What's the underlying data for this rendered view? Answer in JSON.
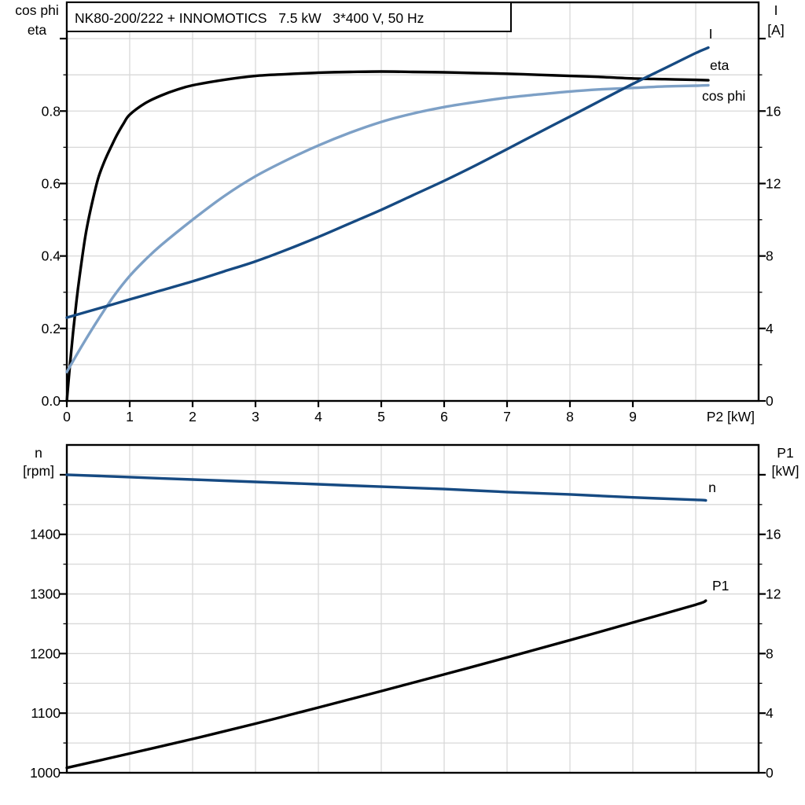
{
  "title": "NK80-200/222 + INNOMOTICS   7.5 kW   3*400 V, 50 Hz",
  "colors": {
    "navy": "#164a82",
    "steel_blue": "#7da0c6",
    "black": "#000000",
    "grid": "#d8d8d8",
    "frame": "#000000",
    "background": "#ffffff"
  },
  "chart_data": [
    {
      "type": "line",
      "title": "NK80-200/222 + INNOMOTICS   7.5 kW   3*400 V, 50 Hz",
      "x_axis": {
        "label": "P2 [kW]",
        "min": 0,
        "max": 11,
        "grid_step": 1,
        "tick_values": [
          0,
          1,
          2,
          3,
          4,
          5,
          6,
          7,
          8,
          9
        ],
        "tick_labels": [
          "0",
          "1",
          "2",
          "3",
          "4",
          "5",
          "6",
          "7",
          "8",
          "9"
        ]
      },
      "left_axis": {
        "label_lines": [
          "cos phi",
          "eta"
        ],
        "min": 0,
        "max": 1.1,
        "grid_step": 0.1,
        "tick_values": [
          0,
          0.2,
          0.4,
          0.6,
          0.8
        ],
        "tick_labels": [
          "0.0",
          "0.2",
          "0.4",
          "0.6",
          "0.8"
        ],
        "top_major_tick": 1.0
      },
      "right_axis": {
        "label_lines": [
          "I",
          "[A]"
        ],
        "min": 0,
        "max": 22,
        "grid_step": 2,
        "tick_values": [
          0,
          4,
          8,
          12,
          16
        ],
        "tick_labels": [
          "0",
          "4",
          "8",
          "12",
          "16"
        ],
        "top_major_tick": 20
      },
      "series": [
        {
          "name": "eta",
          "label": "eta",
          "axis": "left",
          "color": "#000000",
          "points": [
            [
              0,
              0
            ],
            [
              0.05,
              0.1
            ],
            [
              0.1,
              0.19
            ],
            [
              0.15,
              0.27
            ],
            [
              0.2,
              0.34
            ],
            [
              0.3,
              0.46
            ],
            [
              0.4,
              0.545
            ],
            [
              0.5,
              0.615
            ],
            [
              0.6,
              0.662
            ],
            [
              0.7,
              0.7
            ],
            [
              0.8,
              0.735
            ],
            [
              0.9,
              0.765
            ],
            [
              1,
              0.79
            ],
            [
              1.25,
              0.822
            ],
            [
              1.5,
              0.843
            ],
            [
              1.75,
              0.859
            ],
            [
              2,
              0.871
            ],
            [
              2.5,
              0.886
            ],
            [
              3,
              0.897
            ],
            [
              3.5,
              0.902
            ],
            [
              4,
              0.906
            ],
            [
              4.5,
              0.908
            ],
            [
              5,
              0.909
            ],
            [
              5.5,
              0.908
            ],
            [
              6,
              0.907
            ],
            [
              6.5,
              0.905
            ],
            [
              7,
              0.903
            ],
            [
              7.5,
              0.9
            ],
            [
              8,
              0.897
            ],
            [
              8.5,
              0.894
            ],
            [
              9,
              0.89
            ],
            [
              9.5,
              0.888
            ],
            [
              10,
              0.886
            ],
            [
              10.2,
              0.885
            ]
          ]
        },
        {
          "name": "cos_phi",
          "label": "cos phi",
          "axis": "left",
          "color": "#7da0c6",
          "points": [
            [
              0,
              0.08
            ],
            [
              0.25,
              0.155
            ],
            [
              0.5,
              0.225
            ],
            [
              0.75,
              0.29
            ],
            [
              1,
              0.345
            ],
            [
              1.25,
              0.39
            ],
            [
              1.5,
              0.43
            ],
            [
              2,
              0.5
            ],
            [
              2.5,
              0.565
            ],
            [
              3,
              0.62
            ],
            [
              3.5,
              0.665
            ],
            [
              4,
              0.705
            ],
            [
              4.5,
              0.74
            ],
            [
              5,
              0.77
            ],
            [
              5.5,
              0.793
            ],
            [
              6,
              0.811
            ],
            [
              6.5,
              0.825
            ],
            [
              7,
              0.837
            ],
            [
              7.5,
              0.846
            ],
            [
              8,
              0.854
            ],
            [
              8.5,
              0.86
            ],
            [
              9,
              0.864
            ],
            [
              9.5,
              0.868
            ],
            [
              10,
              0.87
            ],
            [
              10.2,
              0.871
            ]
          ]
        },
        {
          "name": "I",
          "label": "I",
          "axis": "right",
          "color": "#164a82",
          "points": [
            [
              0,
              4.6
            ],
            [
              0.5,
              5.1
            ],
            [
              1,
              5.6
            ],
            [
              1.5,
              6.1
            ],
            [
              2,
              6.6
            ],
            [
              2.5,
              7.15
            ],
            [
              3,
              7.7
            ],
            [
              3.5,
              8.35
            ],
            [
              4,
              9.05
            ],
            [
              4.5,
              9.8
            ],
            [
              5,
              10.55
            ],
            [
              5.5,
              11.35
            ],
            [
              6,
              12.15
            ],
            [
              6.5,
              13.0
            ],
            [
              7,
              13.9
            ],
            [
              7.5,
              14.8
            ],
            [
              8,
              15.7
            ],
            [
              8.5,
              16.6
            ],
            [
              9,
              17.5
            ],
            [
              9.5,
              18.35
            ],
            [
              10,
              19.2
            ],
            [
              10.2,
              19.5
            ]
          ]
        }
      ]
    },
    {
      "type": "line",
      "title": "",
      "x_axis": {
        "label": "",
        "min": 0,
        "max": 11,
        "grid_step": 1,
        "tick_values": [],
        "tick_labels": []
      },
      "left_axis": {
        "label_lines": [
          "n",
          "[rpm]"
        ],
        "min": 1000,
        "max": 1550,
        "grid_step": 50,
        "tick_values": [
          1000,
          1100,
          1200,
          1300,
          1400
        ],
        "tick_labels": [
          "1000",
          "1100",
          "1200",
          "1300",
          "1400"
        ],
        "top_major_tick": 1500
      },
      "right_axis": {
        "label_lines": [
          "P1",
          "[kW]"
        ],
        "min": 0,
        "max": 22,
        "grid_step": 2,
        "tick_values": [
          0,
          4,
          8,
          12,
          16
        ],
        "tick_labels": [
          "0",
          "4",
          "8",
          "12",
          "16"
        ],
        "top_major_tick": 20
      },
      "series": [
        {
          "name": "n",
          "label": "n",
          "axis": "left",
          "color": "#164a82",
          "points": [
            [
              0,
              1500
            ],
            [
              1,
              1496
            ],
            [
              2,
              1492
            ],
            [
              3,
              1488
            ],
            [
              4,
              1484
            ],
            [
              5,
              1480
            ],
            [
              6,
              1476
            ],
            [
              7,
              1471
            ],
            [
              8,
              1467
            ],
            [
              9,
              1462
            ],
            [
              10,
              1458
            ],
            [
              10.16,
              1457
            ]
          ]
        },
        {
          "name": "P1",
          "label": "P1",
          "axis": "right",
          "color": "#000000",
          "points": [
            [
              0,
              0.33
            ],
            [
              1,
              1.29
            ],
            [
              2,
              2.27
            ],
            [
              3,
              3.3
            ],
            [
              4,
              4.38
            ],
            [
              5,
              5.48
            ],
            [
              6,
              6.6
            ],
            [
              7,
              7.74
            ],
            [
              8,
              8.9
            ],
            [
              9,
              10.08
            ],
            [
              10,
              11.28
            ],
            [
              10.16,
              11.55
            ]
          ]
        }
      ]
    }
  ]
}
